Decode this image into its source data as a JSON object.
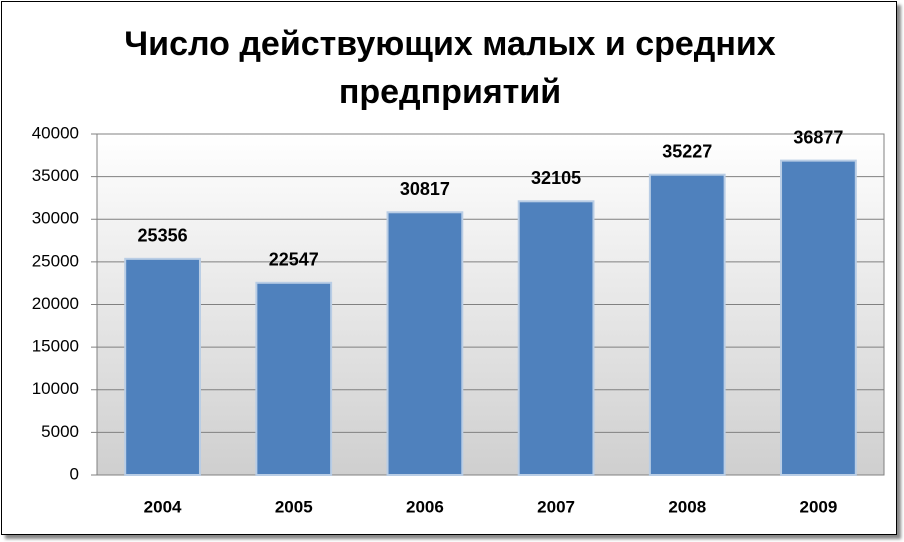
{
  "chart_data": {
    "type": "bar",
    "title": "Число действующих малых и средних предприятий",
    "categories": [
      "2004",
      "2005",
      "2006",
      "2007",
      "2008",
      "2009"
    ],
    "values": [
      25356,
      22547,
      30817,
      32105,
      35227,
      36877
    ],
    "color": "#4f81bd",
    "ylim": [
      0,
      40000
    ],
    "yticks": [
      0,
      5000,
      10000,
      15000,
      20000,
      25000,
      30000,
      35000,
      40000
    ],
    "grid": true
  }
}
